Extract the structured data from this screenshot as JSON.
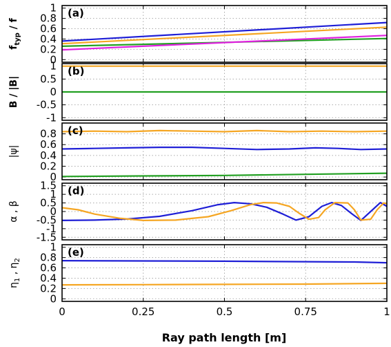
{
  "chart_data": {
    "type": "line",
    "xlabel": "Ray path length [m]",
    "x_ticks": [
      "0",
      "0.25",
      "0.5",
      "0.75",
      "1"
    ],
    "xlim": [
      0,
      1
    ],
    "colors": {
      "blue": "#1f1fd6",
      "orange": "#f5a623",
      "green": "#22a022",
      "magenta": "#e020e0"
    },
    "panels": [
      {
        "label": "(a)",
        "ylabel_main": "f",
        "ylabel_sub": "typ",
        "ylabel_tail": " / f",
        "ylim": [
          -0.05,
          1.05
        ],
        "y_ticks": [
          0,
          0.2,
          0.4,
          0.6,
          0.8,
          1
        ],
        "series": [
          {
            "color": "blue",
            "points": [
              [
                0,
                0.36
              ],
              [
                1,
                0.72
              ]
            ]
          },
          {
            "color": "orange",
            "points": [
              [
                0,
                0.31
              ],
              [
                1,
                0.63
              ]
            ]
          },
          {
            "color": "green",
            "points": [
              [
                0,
                0.26
              ],
              [
                1,
                0.41
              ]
            ]
          },
          {
            "color": "magenta",
            "points": [
              [
                0,
                0.19
              ],
              [
                1,
                0.47
              ]
            ]
          }
        ]
      },
      {
        "label": "(b)",
        "ylabel_main": "B / |B|",
        "ylabel_sub": "",
        "ylabel_tail": "",
        "ylim": [
          -1.1,
          1.1
        ],
        "y_ticks": [
          -1,
          -0.5,
          0,
          0.5,
          1
        ],
        "series": [
          {
            "color": "orange",
            "points": [
              [
                0,
                1.0
              ],
              [
                1,
                1.0
              ]
            ]
          },
          {
            "color": "green",
            "points": [
              [
                0,
                0.0
              ],
              [
                1,
                0.0
              ]
            ]
          }
        ]
      },
      {
        "label": "(c)",
        "ylabel_main": "|ψ|",
        "ylabel_sub": "",
        "ylabel_tail": "",
        "ylim": [
          -0.05,
          1.0
        ],
        "y_ticks": [
          0,
          0.2,
          0.4,
          0.6,
          0.8
        ],
        "series": [
          {
            "color": "orange",
            "points": [
              [
                0,
                0.84
              ],
              [
                0.1,
                0.85
              ],
              [
                0.2,
                0.84
              ],
              [
                0.3,
                0.86
              ],
              [
                0.4,
                0.85
              ],
              [
                0.5,
                0.84
              ],
              [
                0.6,
                0.86
              ],
              [
                0.7,
                0.84
              ],
              [
                0.8,
                0.85
              ],
              [
                0.9,
                0.84
              ],
              [
                1,
                0.85
              ]
            ]
          },
          {
            "color": "blue",
            "points": [
              [
                0,
                0.52
              ],
              [
                0.1,
                0.53
              ],
              [
                0.2,
                0.54
              ],
              [
                0.3,
                0.55
              ],
              [
                0.4,
                0.55
              ],
              [
                0.5,
                0.53
              ],
              [
                0.6,
                0.51
              ],
              [
                0.7,
                0.52
              ],
              [
                0.78,
                0.54
              ],
              [
                0.85,
                0.53
              ],
              [
                0.92,
                0.51
              ],
              [
                1,
                0.52
              ]
            ]
          },
          {
            "color": "green",
            "points": [
              [
                0,
                0.01
              ],
              [
                0.25,
                0.02
              ],
              [
                0.5,
                0.03
              ],
              [
                0.75,
                0.05
              ],
              [
                1,
                0.07
              ]
            ]
          }
        ]
      },
      {
        "label": "(d)",
        "ylabel_main": "α , β",
        "ylabel_sub": "",
        "ylabel_tail": "",
        "ylim": [
          -1.65,
          1.65
        ],
        "y_ticks": [
          -1.5,
          -1,
          -0.5,
          0,
          0.5,
          1,
          1.5
        ],
        "series": [
          {
            "color": "blue",
            "points": [
              [
                0,
                -0.52
              ],
              [
                0.1,
                -0.5
              ],
              [
                0.2,
                -0.44
              ],
              [
                0.3,
                -0.28
              ],
              [
                0.4,
                0.05
              ],
              [
                0.48,
                0.4
              ],
              [
                0.53,
                0.52
              ],
              [
                0.58,
                0.45
              ],
              [
                0.63,
                0.25
              ],
              [
                0.68,
                -0.15
              ],
              [
                0.72,
                -0.5
              ],
              [
                0.76,
                -0.3
              ],
              [
                0.8,
                0.3
              ],
              [
                0.83,
                0.52
              ],
              [
                0.86,
                0.35
              ],
              [
                0.89,
                -0.1
              ],
              [
                0.92,
                -0.52
              ],
              [
                0.95,
                0.0
              ],
              [
                0.98,
                0.52
              ],
              [
                1,
                0.3
              ]
            ]
          },
          {
            "color": "orange",
            "points": [
              [
                0,
                0.22
              ],
              [
                0.05,
                0.1
              ],
              [
                0.1,
                -0.15
              ],
              [
                0.18,
                -0.4
              ],
              [
                0.25,
                -0.52
              ],
              [
                0.35,
                -0.5
              ],
              [
                0.45,
                -0.3
              ],
              [
                0.52,
                0.05
              ],
              [
                0.58,
                0.4
              ],
              [
                0.62,
                0.52
              ],
              [
                0.66,
                0.5
              ],
              [
                0.7,
                0.3
              ],
              [
                0.73,
                -0.1
              ],
              [
                0.76,
                -0.45
              ],
              [
                0.79,
                -0.35
              ],
              [
                0.81,
                0.1
              ],
              [
                0.84,
                0.52
              ],
              [
                0.88,
                0.5
              ],
              [
                0.9,
                0.1
              ],
              [
                0.92,
                -0.5
              ],
              [
                0.95,
                -0.45
              ],
              [
                0.97,
                0.1
              ],
              [
                0.99,
                0.5
              ],
              [
                1,
                0.45
              ]
            ]
          }
        ]
      },
      {
        "label": "(e)",
        "ylabel_main": "η",
        "ylabel_sub": "1",
        "ylabel_tail": " , η",
        "ylabel_sub2": "2",
        "ylim": [
          -0.05,
          1.05
        ],
        "y_ticks": [
          0,
          0.2,
          0.4,
          0.6,
          0.8,
          1
        ],
        "series": [
          {
            "color": "blue",
            "points": [
              [
                0,
                0.74
              ],
              [
                0.25,
                0.735
              ],
              [
                0.5,
                0.73
              ],
              [
                0.75,
                0.72
              ],
              [
                0.9,
                0.715
              ],
              [
                1,
                0.7
              ]
            ]
          },
          {
            "color": "orange",
            "points": [
              [
                0,
                0.27
              ],
              [
                0.25,
                0.275
              ],
              [
                0.5,
                0.28
              ],
              [
                0.75,
                0.285
              ],
              [
                1,
                0.3
              ]
            ]
          }
        ]
      }
    ]
  }
}
